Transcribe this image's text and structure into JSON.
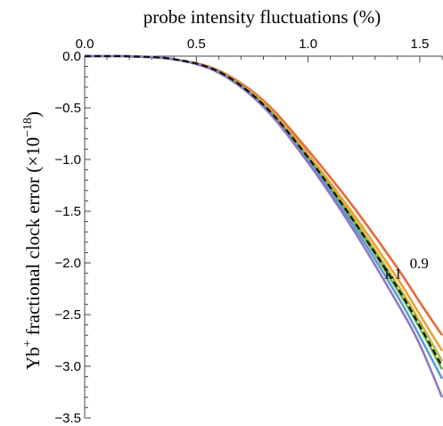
{
  "chart_data": {
    "type": "line",
    "title": "",
    "xlabel": "probe intensity fluctuations (%)",
    "ylabel_main": "Yb",
    "ylabel_sup1": "+",
    "ylabel_mid": " fractional clock error (×10",
    "ylabel_sup2": "−18",
    "ylabel_end": ")",
    "xlim": [
      0,
      1.6
    ],
    "ylim": [
      -3.5,
      0
    ],
    "x_ticks": [
      {
        "value": 0.0,
        "label": "0.0"
      },
      {
        "value": 0.5,
        "label": "0.5"
      },
      {
        "value": 1.0,
        "label": "1.0"
      },
      {
        "value": 1.5,
        "label": "1.5"
      }
    ],
    "y_ticks": [
      {
        "value": 0.0,
        "label": "0.0"
      },
      {
        "value": -0.5,
        "label": "−0.5"
      },
      {
        "value": -1.0,
        "label": "−1.0"
      },
      {
        "value": -1.5,
        "label": "−1.5"
      },
      {
        "value": -2.0,
        "label": "−2.0"
      },
      {
        "value": -2.5,
        "label": "−2.5"
      },
      {
        "value": -3.0,
        "label": "−3.0"
      },
      {
        "value": -3.5,
        "label": "−3.5"
      }
    ],
    "x_axis_position": "top",
    "grid": false,
    "series": [
      {
        "color": "#e8683a",
        "dashed": false,
        "x": [
          0,
          0.2,
          0.4,
          0.6,
          0.8,
          1.0,
          1.2,
          1.4,
          1.5,
          1.6
        ],
        "y": [
          0,
          -0.002,
          -0.03,
          -0.14,
          -0.43,
          -0.91,
          -1.45,
          -2.05,
          -2.38,
          -2.7
        ]
      },
      {
        "color": "#f0a030",
        "dashed": false,
        "x": [
          0,
          0.2,
          0.4,
          0.6,
          0.8,
          1.0,
          1.2,
          1.4,
          1.5,
          1.6
        ],
        "y": [
          0,
          -0.002,
          -0.03,
          -0.15,
          -0.45,
          -0.95,
          -1.52,
          -2.15,
          -2.5,
          -2.85
        ]
      },
      {
        "color": "#b6b63a",
        "dashed": false,
        "x": [
          0,
          0.2,
          0.4,
          0.6,
          0.8,
          1.0,
          1.2,
          1.4,
          1.5,
          1.6
        ],
        "y": [
          0,
          -0.002,
          -0.03,
          -0.15,
          -0.46,
          -0.97,
          -1.56,
          -2.21,
          -2.57,
          -2.95
        ]
      },
      {
        "color": "#6fb34a",
        "dashed": false,
        "x": [
          0,
          0.2,
          0.4,
          0.6,
          0.8,
          1.0,
          1.2,
          1.4,
          1.5,
          1.6
        ],
        "y": [
          0,
          -0.002,
          -0.03,
          -0.15,
          -0.47,
          -0.99,
          -1.59,
          -2.26,
          -2.63,
          -3.03
        ]
      },
      {
        "color": "#5a9bd5",
        "dashed": false,
        "x": [
          0,
          0.2,
          0.4,
          0.6,
          0.8,
          1.0,
          1.2,
          1.4,
          1.5,
          1.6
        ],
        "y": [
          0,
          -0.002,
          -0.03,
          -0.16,
          -0.48,
          -1.01,
          -1.63,
          -2.32,
          -2.71,
          -3.12
        ]
      },
      {
        "color": "#9178c0",
        "dashed": false,
        "x": [
          0,
          0.2,
          0.4,
          0.6,
          0.8,
          1.0,
          1.2,
          1.4,
          1.5,
          1.6
        ],
        "y": [
          0,
          -0.002,
          -0.03,
          -0.16,
          -0.49,
          -1.03,
          -1.67,
          -2.39,
          -2.79,
          -3.3
        ]
      },
      {
        "color": "#111111",
        "dashed": true,
        "x": [
          0,
          0.2,
          0.4,
          0.6,
          0.8,
          1.0,
          1.2,
          1.4,
          1.5,
          1.6
        ],
        "y": [
          0,
          -0.002,
          -0.03,
          -0.15,
          -0.47,
          -0.98,
          -1.58,
          -2.24,
          -2.61,
          -3.0
        ]
      }
    ],
    "annotations": [
      {
        "text": "0.9",
        "x": 1.455,
        "y": -2.05
      },
      {
        "text": "1.1",
        "x": 1.335,
        "y": -2.15
      }
    ]
  }
}
